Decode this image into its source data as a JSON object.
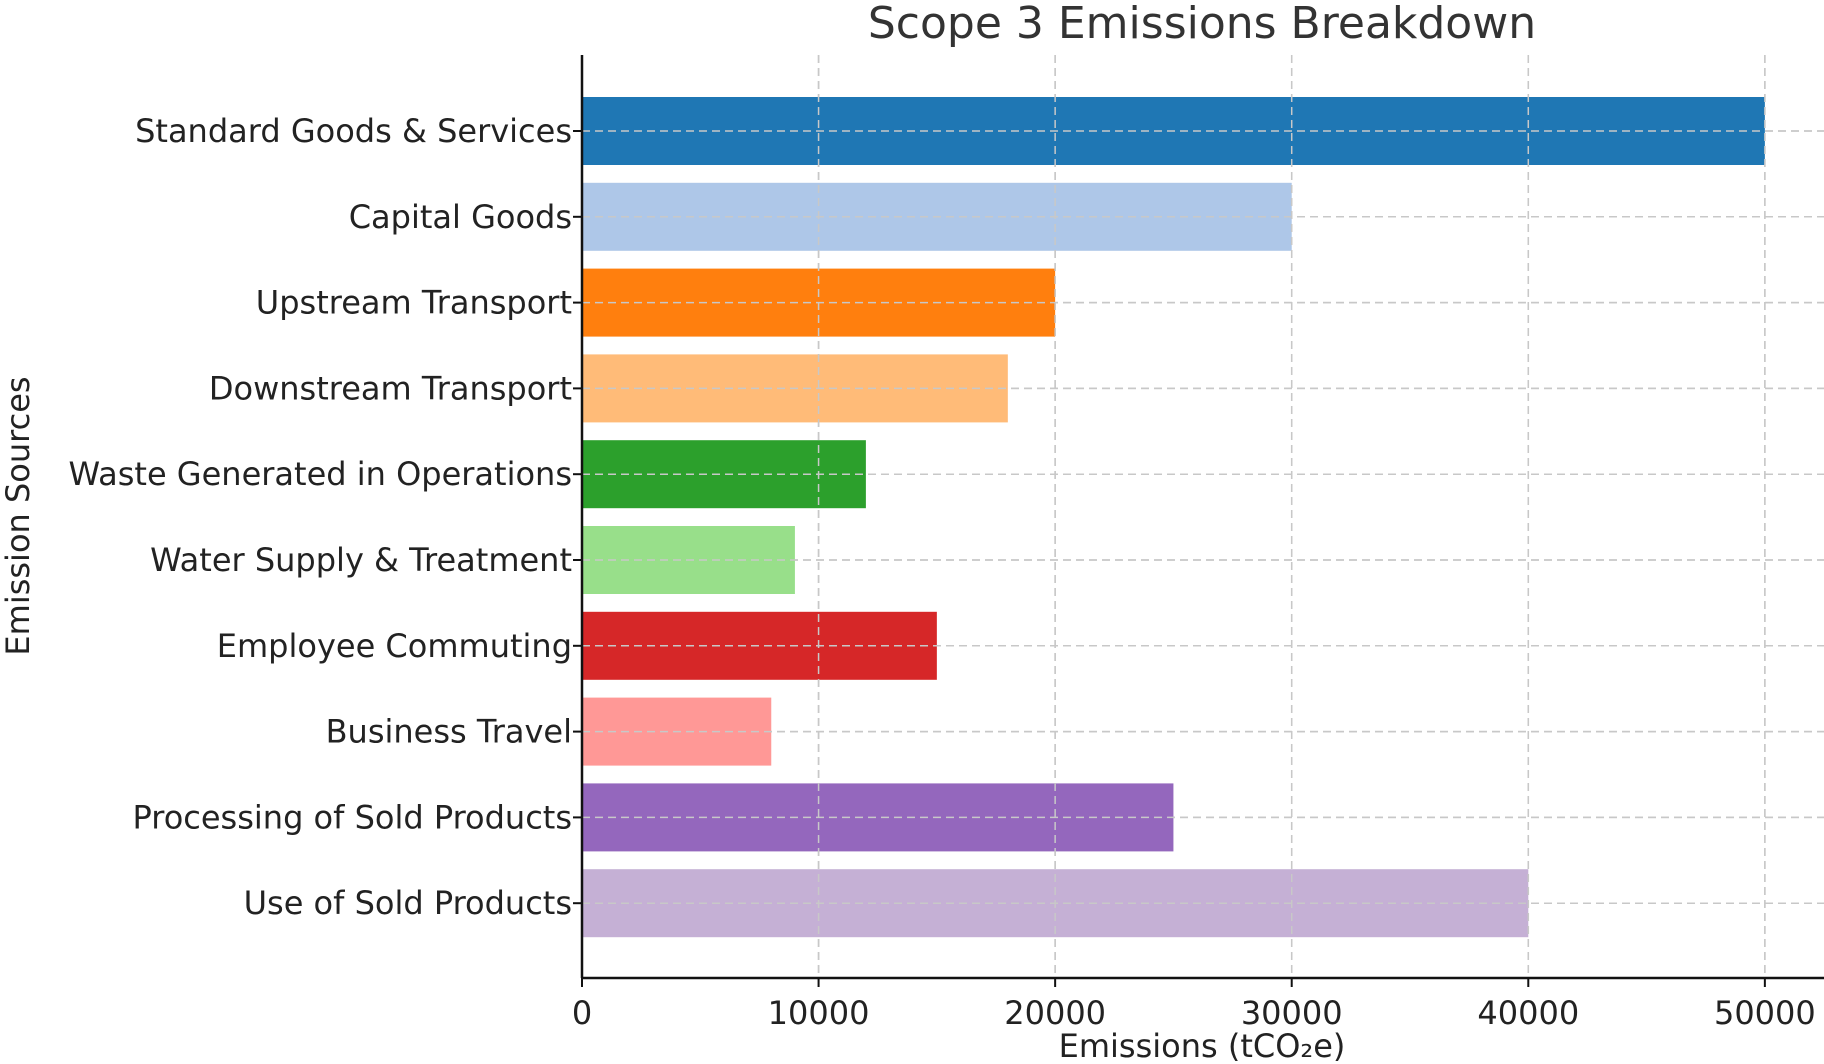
{
  "chart_data": {
    "type": "bar",
    "orientation": "horizontal",
    "title": "Scope 3 Emissions Breakdown",
    "xlabel": "Emissions (tCO₂e)",
    "ylabel": "Emission Sources",
    "categories": [
      "Standard Goods & Services",
      "Capital Goods",
      "Upstream Transport",
      "Downstream Transport",
      "Waste Generated in Operations",
      "Water Supply & Treatment",
      "Employee Commuting",
      "Business Travel",
      "Processing of Sold Products",
      "Use of Sold Products"
    ],
    "values": [
      50000,
      30000,
      20000,
      18000,
      12000,
      9000,
      15000,
      8000,
      25000,
      40000
    ],
    "colors": [
      "#1f77b4",
      "#aec7e8",
      "#ff7f0e",
      "#ffbb78",
      "#2ca02c",
      "#98df8a",
      "#d62728",
      "#ff9896",
      "#9467bd",
      "#c5b0d5"
    ],
    "xlim": [
      0,
      52500
    ],
    "xticks": [
      0,
      10000,
      20000,
      30000,
      40000,
      50000
    ],
    "grid": true
  }
}
